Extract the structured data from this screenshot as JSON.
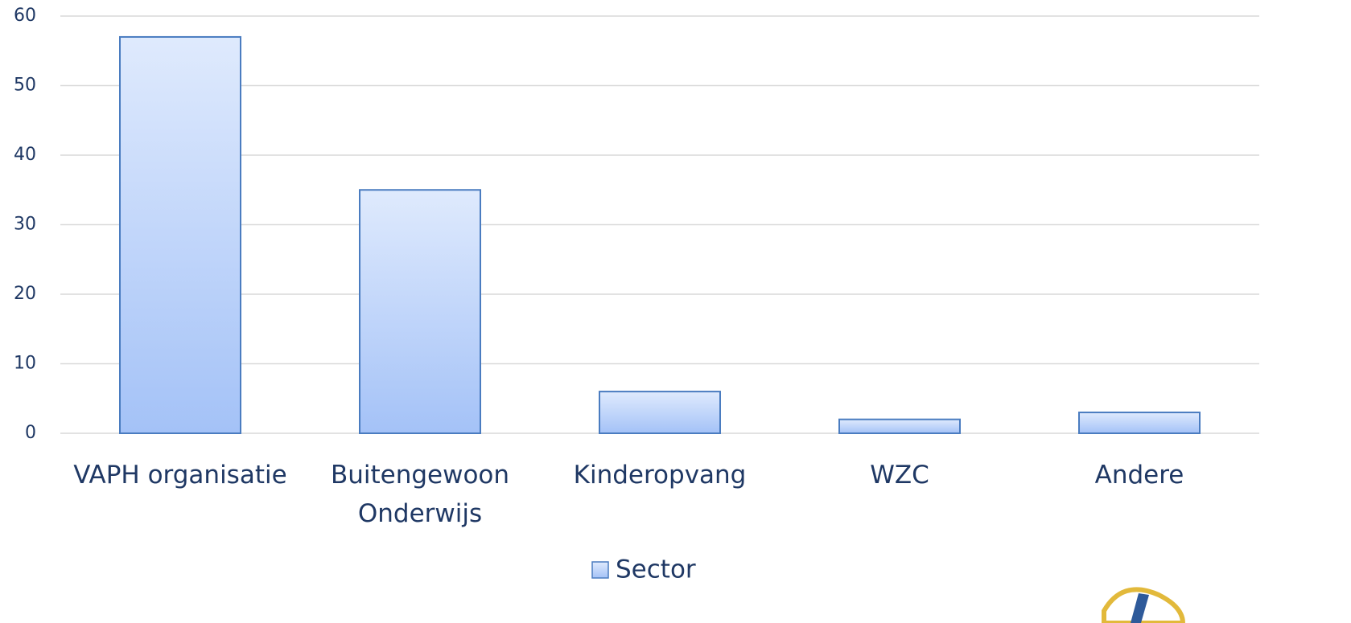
{
  "chart_data": {
    "type": "bar",
    "categories": [
      "VAPH organisatie",
      "Buitengewoon Onderwijs",
      "Kinderopvang",
      "WZC",
      "Andere"
    ],
    "series": [
      {
        "name": "Sector",
        "color": "#a4c2f7",
        "values": [
          57,
          35,
          6,
          2,
          3
        ]
      }
    ],
    "ylim": [
      0,
      60
    ],
    "yticks": [
      0,
      10,
      20,
      30,
      40,
      50,
      60
    ],
    "grid": true,
    "legend": "bottom"
  }
}
